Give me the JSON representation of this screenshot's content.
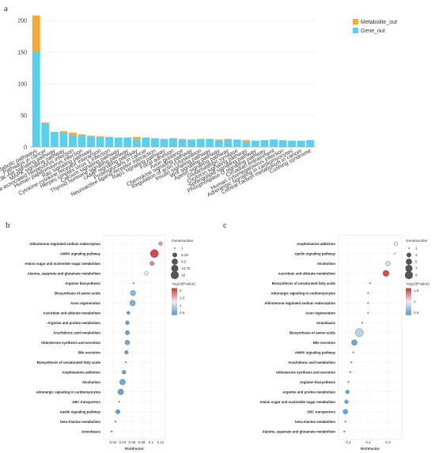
{
  "labels": {
    "a": "a",
    "b": "b",
    "c": "c"
  },
  "chart_data": [
    {
      "type": "bar",
      "stacked": true,
      "panel": "a",
      "categories": [
        "Metabolic pathways",
        "Pathways in cancer",
        "PI3K-Akt signaling pathway",
        "MAPK signaling pathway",
        "Kaposi sarcoma-associated herpesvirus infection",
        "Human papillomavirus infection",
        "Ras signaling pathway",
        "Cytokine-cytokine receptor interaction",
        "Herpes simplex virus 1 infection",
        "Calcium signaling pathway",
        "Thyroid hormone signaling pathway",
        "cAMP signaling pathway",
        "Proteoglycans in cancer",
        "Neuroactive ligand-receptor interaction",
        "Rap1 signaling pathway",
        "Focal adhesion",
        "Axon guidance",
        "Chemokine signaling pathway",
        "Regulation of actin cytoskeleton",
        "Insulin signaling pathway",
        "Wnt signaling pathway",
        "Apelin signaling pathway",
        "Glutamatergic synapse",
        "Oxytocin signaling pathway",
        "Sphingolipid signaling pathway",
        "Phospholipase D signaling pathway",
        "Circadian entrainment",
        "Human cytomegalovirus infection",
        "Adrenergic signaling in cardiomyocytes",
        "Central carbon metabolism in cancer",
        "Cushing syndrome"
      ],
      "series": [
        {
          "name": "Gene_out",
          "color": "#5bd0ee",
          "values": [
            150,
            37,
            24,
            23,
            19,
            18,
            17,
            16,
            16,
            15,
            15,
            12,
            15,
            14,
            13,
            14,
            12,
            12,
            13,
            13,
            10,
            12,
            12,
            9,
            10,
            11,
            12,
            11,
            10,
            10,
            11
          ]
        },
        {
          "name": "Metabolite_out",
          "color": "#f4a93b",
          "values": [
            58,
            2,
            0,
            2,
            4,
            2,
            1,
            1,
            0,
            0,
            0,
            4,
            0,
            0,
            0,
            0,
            1,
            0,
            0,
            0,
            2,
            1,
            0,
            2,
            0,
            0,
            0,
            0,
            0,
            0,
            0
          ]
        }
      ],
      "ylim": [
        0,
        210
      ],
      "yticks": [
        0,
        50,
        100,
        150,
        200
      ],
      "grid": true,
      "legend_position": "top-right"
    },
    {
      "type": "scatter",
      "panel": "b",
      "xlabel": "RichFactor",
      "xlim": [
        0,
        0.13
      ],
      "xticks": [
        "0.02",
        "0.04",
        "0.06",
        "0.08",
        "0.1",
        "0.12"
      ],
      "size_legend_title": "GeneNumber",
      "size_legend": [
        "1",
        "5.25",
        "9.5",
        "13.75",
        "18"
      ],
      "color_legend_title": "-log10(Pvalue)",
      "color_legend": [
        "2",
        "1.5",
        "1",
        "0.5"
      ],
      "color_range": [
        0.3,
        2.1
      ],
      "size_range": [
        1,
        18
      ],
      "points": [
        {
          "pathway": "Aldosterone-regulated sodium reabsorption",
          "rich_factor": 0.12,
          "gene_number": 3,
          "neglog10p": 1.6
        },
        {
          "pathway": "AMPK signaling pathway",
          "rich_factor": 0.107,
          "gene_number": 18,
          "neglog10p": 2.0
        },
        {
          "pathway": "Amino sugar and nucleotide sugar metabolism",
          "rich_factor": 0.102,
          "gene_number": 4,
          "neglog10p": 1.7
        },
        {
          "pathway": "Alanine, aspartate and glutamate metabolism",
          "rich_factor": 0.09,
          "gene_number": 3,
          "neglog10p": 1.2
        },
        {
          "pathway": "Arginine biosynthesis",
          "rich_factor": 0.063,
          "gene_number": 1,
          "neglog10p": 0.4
        },
        {
          "pathway": "Biosynthesis of amino acids",
          "rich_factor": 0.062,
          "gene_number": 7,
          "neglog10p": 0.6
        },
        {
          "pathway": "Axon regeneration",
          "rich_factor": 0.061,
          "gene_number": 8,
          "neglog10p": 0.55
        },
        {
          "pathway": "Ascorbate and aldarate metabolism",
          "rich_factor": 0.052,
          "gene_number": 2,
          "neglog10p": 0.35
        },
        {
          "pathway": "Arginine and proline metabolism",
          "rich_factor": 0.05,
          "gene_number": 3,
          "neglog10p": 0.35
        },
        {
          "pathway": "Arachidonic acid metabolism",
          "rich_factor": 0.05,
          "gene_number": 4,
          "neglog10p": 0.4
        },
        {
          "pathway": "Aldosterone synthesis and secretion",
          "rich_factor": 0.05,
          "gene_number": 5,
          "neglog10p": 0.45
        },
        {
          "pathway": "Bile secretion",
          "rich_factor": 0.048,
          "gene_number": 3,
          "neglog10p": 0.4
        },
        {
          "pathway": "Biosynthesis of unsaturated fatty acids",
          "rich_factor": 0.047,
          "gene_number": 1,
          "neglog10p": 0.3
        },
        {
          "pathway": "Amphetamine addiction",
          "rich_factor": 0.043,
          "gene_number": 3,
          "neglog10p": 0.35
        },
        {
          "pathway": "Alcoholism",
          "rich_factor": 0.04,
          "gene_number": 8,
          "neglog10p": 0.45
        },
        {
          "pathway": "Adrenergic signaling in cardiomyocytes",
          "rich_factor": 0.036,
          "gene_number": 8,
          "neglog10p": 0.4
        },
        {
          "pathway": "ABC transporters",
          "rich_factor": 0.033,
          "gene_number": 1,
          "neglog10p": 0.3
        },
        {
          "pathway": "Apelin signaling pathway",
          "rich_factor": 0.03,
          "gene_number": 4,
          "neglog10p": 0.35
        },
        {
          "pathway": "beta-Alanine metabolism",
          "rich_factor": 0.025,
          "gene_number": 1,
          "neglog10p": 0.3
        },
        {
          "pathway": "Amoebiasis",
          "rich_factor": 0.017,
          "gene_number": 1,
          "neglog10p": 0.3
        }
      ]
    },
    {
      "type": "scatter",
      "panel": "c",
      "xlabel": "RichFactor",
      "xlim": [
        0.05,
        0.37
      ],
      "xticks": [
        "0.1",
        "0.2",
        "0.3"
      ],
      "size_legend_title": "GeneNumber",
      "size_legend": [
        "1",
        "3",
        "5",
        "7",
        "9"
      ],
      "color_legend_title": "-log10(Pvalue)",
      "color_legend": [
        "1.5",
        "1",
        "0.5"
      ],
      "color_range": [
        0.2,
        1.6
      ],
      "size_range": [
        1,
        9
      ],
      "points": [
        {
          "pathway": "Amphetamine addiction",
          "rich_factor": 0.34,
          "gene_number": 2,
          "neglog10p": 0.9
        },
        {
          "pathway": "Apelin signaling pathway",
          "rich_factor": 0.335,
          "gene_number": 1,
          "neglog10p": 0.85
        },
        {
          "pathway": "Alcoholism",
          "rich_factor": 0.3,
          "gene_number": 3,
          "neglog10p": 0.8
        },
        {
          "pathway": "Ascorbate and aldarate metabolism",
          "rich_factor": 0.29,
          "gene_number": 5,
          "neglog10p": 1.5
        },
        {
          "pathway": "Biosynthesis of unsaturated fatty acids",
          "rich_factor": 0.21,
          "gene_number": 1,
          "neglog10p": 0.6
        },
        {
          "pathway": "Adrenergic signaling in cardiomyocytes",
          "rich_factor": 0.2,
          "gene_number": 1,
          "neglog10p": 0.5
        },
        {
          "pathway": "Aldosterone-regulated sodium reabsorption",
          "rich_factor": 0.2,
          "gene_number": 1,
          "neglog10p": 0.5
        },
        {
          "pathway": "Axon regeneration",
          "rich_factor": 0.2,
          "gene_number": 1,
          "neglog10p": 0.5
        },
        {
          "pathway": "Amoebiasis",
          "rich_factor": 0.17,
          "gene_number": 1,
          "neglog10p": 0.4
        },
        {
          "pathway": "Biosynthesis of amino acids",
          "rich_factor": 0.155,
          "gene_number": 9,
          "neglog10p": 0.7
        },
        {
          "pathway": "Bile secretion",
          "rich_factor": 0.13,
          "gene_number": 4,
          "neglog10p": 0.3
        },
        {
          "pathway": "AMPK signaling pathway",
          "rich_factor": 0.125,
          "gene_number": 1,
          "neglog10p": 0.3
        },
        {
          "pathway": "Arachidonic acid metabolism",
          "rich_factor": 0.115,
          "gene_number": 1,
          "neglog10p": 0.3
        },
        {
          "pathway": "Aldosterone synthesis and secretion",
          "rich_factor": 0.11,
          "gene_number": 1,
          "neglog10p": 0.3
        },
        {
          "pathway": "Arginine biosynthesis",
          "rich_factor": 0.1,
          "gene_number": 1,
          "neglog10p": 0.3
        },
        {
          "pathway": "Arginine and proline metabolism",
          "rich_factor": 0.095,
          "gene_number": 2,
          "neglog10p": 0.3
        },
        {
          "pathway": "Amino sugar and nucleotide sugar metabolism",
          "rich_factor": 0.09,
          "gene_number": 2,
          "neglog10p": 0.3
        },
        {
          "pathway": "ABC transporters",
          "rich_factor": 0.085,
          "gene_number": 3,
          "neglog10p": 0.3
        },
        {
          "pathway": "beta-Alanine metabolism",
          "rich_factor": 0.085,
          "gene_number": 1,
          "neglog10p": 0.3
        },
        {
          "pathway": "Alanine, aspartate and glutamate metabolism",
          "rich_factor": 0.08,
          "gene_number": 1,
          "neglog10p": 0.3
        }
      ]
    }
  ]
}
